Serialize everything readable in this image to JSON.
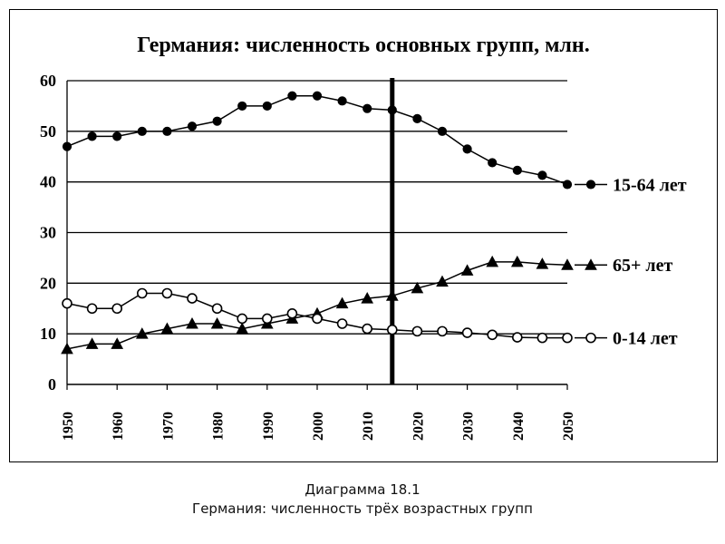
{
  "caption": {
    "line1": "Диаграмма 18.1",
    "line2": "Германия: численность трёх возрастных групп"
  },
  "chart_data": {
    "type": "line",
    "title": "Германия: численность основных групп, млн.",
    "xlabel": "",
    "ylabel": "",
    "ylim": [
      0,
      60
    ],
    "xlim": [
      1950,
      2050
    ],
    "y_ticks": [
      0,
      10,
      20,
      30,
      40,
      50,
      60
    ],
    "x_ticks": [
      1950,
      1960,
      1970,
      1980,
      1990,
      2000,
      2010,
      2020,
      2030,
      2040,
      2050
    ],
    "grid": "horizontal",
    "vertical_marker_x": 2015,
    "x": [
      1950,
      1955,
      1960,
      1965,
      1970,
      1975,
      1980,
      1985,
      1990,
      1995,
      2000,
      2005,
      2010,
      2015,
      2020,
      2025,
      2030,
      2035,
      2040,
      2045,
      2050
    ],
    "series": [
      {
        "name": "15-64 лет",
        "marker": "filled-circle",
        "values": [
          47,
          49,
          49,
          50,
          50,
          51,
          52,
          55,
          55,
          57,
          57,
          56,
          54.5,
          54.2,
          52.5,
          50,
          46.5,
          43.8,
          42.3,
          41.3,
          39.5
        ]
      },
      {
        "name": "65+ лет",
        "marker": "filled-triangle",
        "values": [
          7,
          8,
          8,
          10,
          11,
          12,
          12,
          11,
          12,
          13,
          14,
          16,
          17,
          17.5,
          19,
          20.3,
          22.5,
          24.2,
          24.2,
          23.8,
          23.6
        ]
      },
      {
        "name": "0-14 лет",
        "marker": "open-circle",
        "values": [
          16,
          15,
          15,
          18,
          18,
          17,
          15,
          13,
          13,
          14,
          13,
          12,
          11,
          10.8,
          10.5,
          10.5,
          10.2,
          9.8,
          9.3,
          9.2,
          9.2
        ]
      }
    ],
    "colors": {
      "line": "#000000",
      "grid": "#000000",
      "marker_fill_open": "#ffffff"
    }
  }
}
